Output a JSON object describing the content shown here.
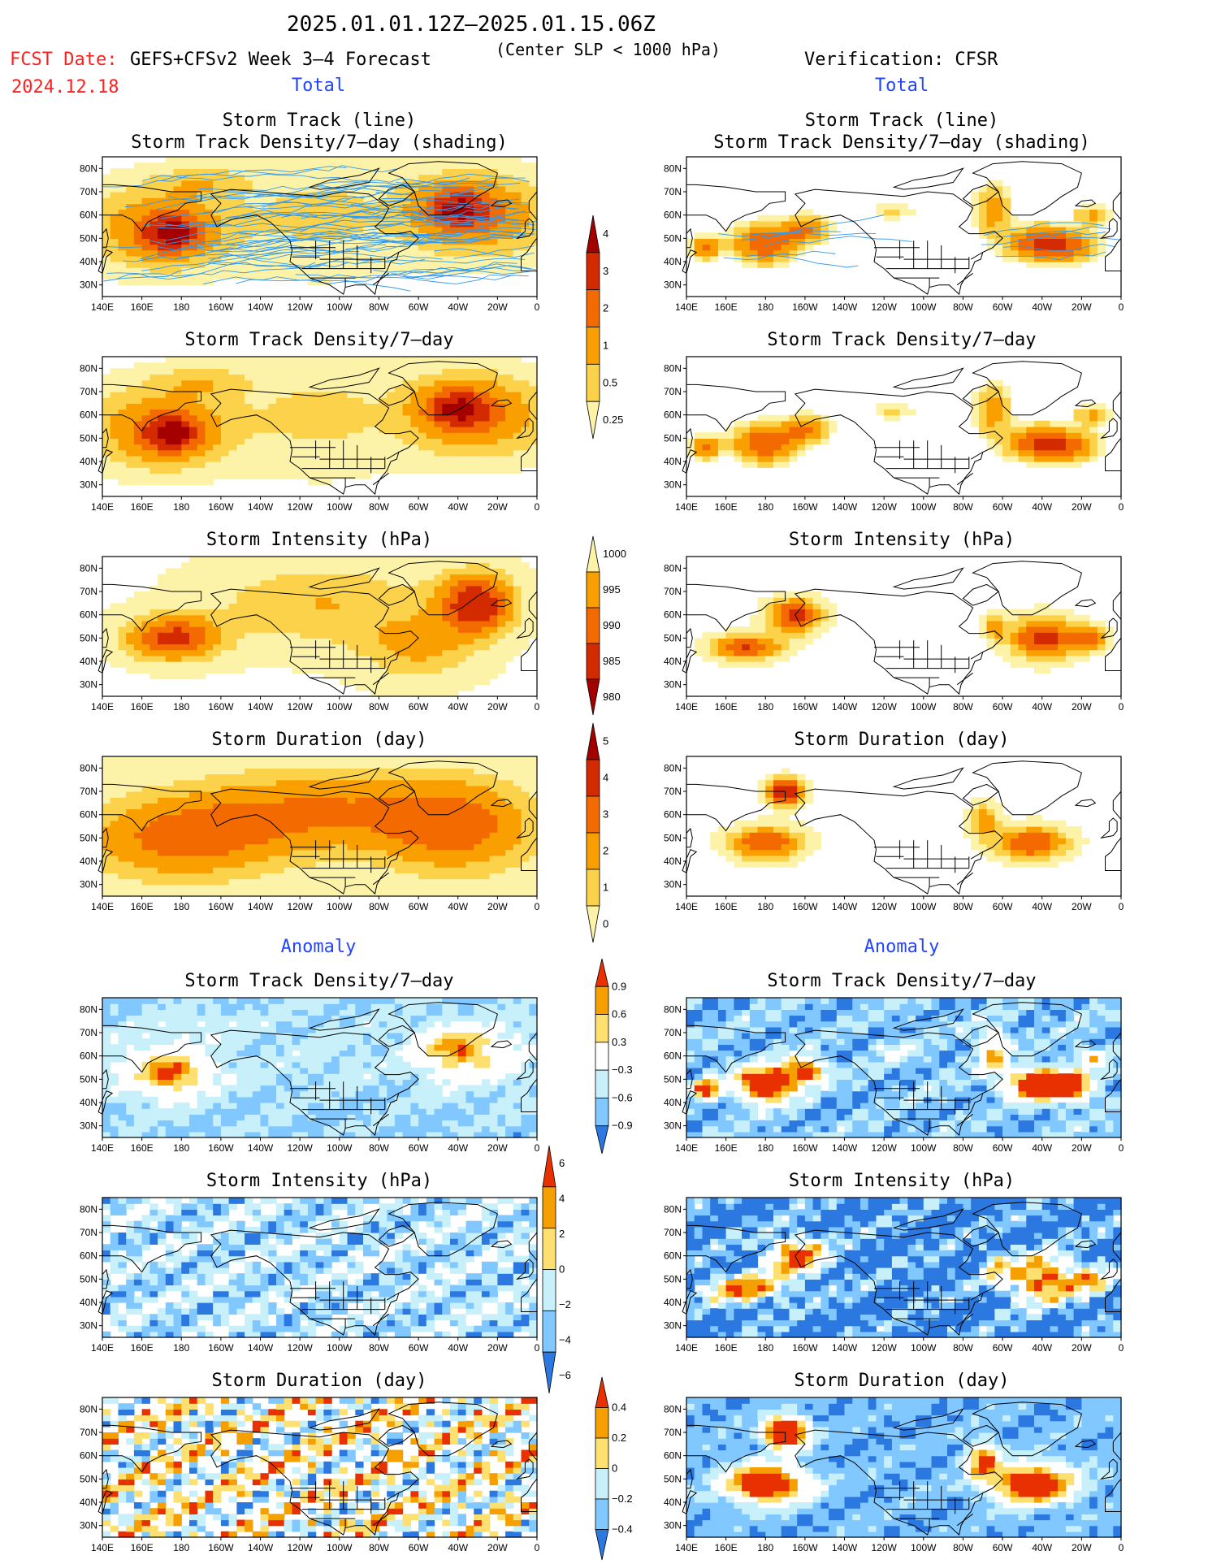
{
  "header": {
    "title": "2025.01.01.12Z–2025.01.15.06Z",
    "fcst_label": "FCST Date:",
    "fcst_date": "2024.12.18",
    "model": "GEFS+CFSv2 Week 3–4 Forecast",
    "condition": "(Center SLP < 1000 hPa)",
    "verification": "Verification: CFSR"
  },
  "columns": {
    "total_label": "Total",
    "anomaly_label": "Anomaly"
  },
  "map_axes": {
    "lon_ticks": [
      "140E",
      "160E",
      "180",
      "160W",
      "140W",
      "120W",
      "100W",
      "80W",
      "60W",
      "40W",
      "20W",
      "0"
    ],
    "lat_ticks": [
      "80N",
      "70N",
      "60N",
      "50N",
      "40N",
      "30N"
    ],
    "lon_range": [
      140,
      360
    ],
    "lat_range": [
      25,
      85
    ]
  },
  "panels": {
    "total": {
      "track_title_1": "Storm Track (line)",
      "track_title_2": "Storm Track Density/7–day (shading)",
      "density_title": "Storm Track Density/7–day",
      "intensity_title": "Storm Intensity (hPa)",
      "duration_title": "Storm Duration (day)"
    },
    "anomaly": {
      "density_title": "Storm Track Density/7–day",
      "intensity_title": "Storm Intensity (hPa)",
      "duration_title": "Storm Duration (day)"
    }
  },
  "colorbars": {
    "total_density": {
      "labels": [
        "4",
        "3",
        "2",
        "1",
        "0.5",
        "0.25"
      ],
      "colors": [
        "#a50000",
        "#d42a00",
        "#f26a00",
        "#f9a000",
        "#fbd24a",
        "#fdf3a8"
      ]
    },
    "total_intensity": {
      "labels": [
        "1000",
        "995",
        "990",
        "985",
        "980"
      ],
      "colors": [
        "#fdf3a8",
        "#f9a000",
        "#f26a00",
        "#d42a00",
        "#a50000"
      ]
    },
    "total_duration": {
      "labels": [
        "5",
        "4",
        "3",
        "2",
        "1",
        "0"
      ],
      "colors": [
        "#a50000",
        "#d42a00",
        "#f26a00",
        "#f9a000",
        "#fbd24a",
        "#fdf3a8"
      ]
    },
    "anom_density": {
      "labels": [
        "0.9",
        "0.6",
        "0.3",
        "−0.3",
        "−0.6",
        "−0.9"
      ],
      "colors": [
        "#e83000",
        "#f5a000",
        "#fde070",
        "#ffffff",
        "#c8f0fa",
        "#80c8ff",
        "#2a78e0"
      ]
    },
    "anom_intensity": {
      "labels": [
        "6",
        "4",
        "2",
        "0",
        "−2",
        "−4",
        "−6"
      ],
      "colors": [
        "#e83000",
        "#f5a000",
        "#fde070",
        "#c8f0fa",
        "#80c8ff",
        "#2a78e0"
      ]
    },
    "anom_duration": {
      "labels": [
        "0.4",
        "0.2",
        "0",
        "−0.2",
        "−0.4"
      ],
      "colors": [
        "#e83000",
        "#f5a000",
        "#fde070",
        "#c8f0fa",
        "#80c8ff",
        "#2a78e0"
      ]
    }
  },
  "colors": {
    "fcst_red": "#ff2020",
    "label_blue": "#2244ff",
    "track_blue": "#3399ee",
    "land": "#000000"
  }
}
